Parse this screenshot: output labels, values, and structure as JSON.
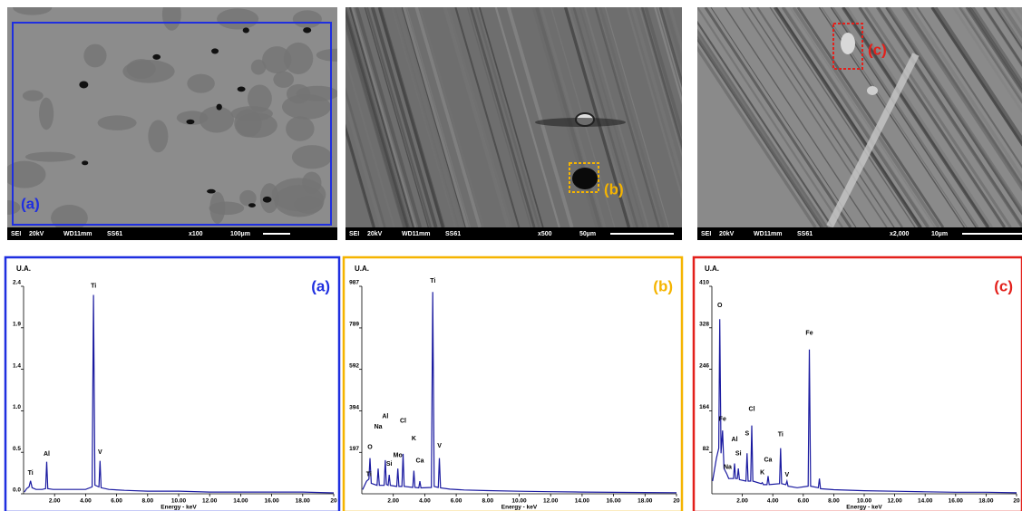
{
  "images": [
    {
      "label": "(a)",
      "color": "#1f2fe0",
      "info": [
        "SEI",
        "20kV",
        "WD11mm",
        "SS61",
        "x100",
        "100µm"
      ]
    },
    {
      "label": "(b)",
      "color": "#f5b400",
      "info": [
        "SEI",
        "20kV",
        "WD11mm",
        "SS61",
        "x500",
        "50µm"
      ]
    },
    {
      "label": "(c)",
      "color": "#e3201b",
      "info": [
        "SEI",
        "20kV",
        "WD11mm",
        "SS61",
        "x2,000",
        "10µm"
      ]
    }
  ],
  "chart_data": [
    {
      "type": "line",
      "panel_label": "(a)",
      "border_color": "#1f2fe0",
      "color": "#1a1aa0",
      "ylabel": "U.A.",
      "xlabel": "Energy - keV",
      "x": [
        0.05,
        0.2,
        0.35,
        0.45,
        0.55,
        0.8,
        1.2,
        1.42,
        1.49,
        1.56,
        1.9,
        2.5,
        3.2,
        4.0,
        4.42,
        4.51,
        4.6,
        4.86,
        4.93,
        5.0,
        5.5,
        6.5,
        8,
        10,
        12,
        14,
        16,
        18,
        20
      ],
      "values": [
        0.02,
        0.06,
        0.08,
        0.15,
        0.07,
        0.05,
        0.05,
        0.06,
        0.37,
        0.06,
        0.05,
        0.05,
        0.05,
        0.05,
        0.08,
        2.3,
        0.1,
        0.08,
        0.38,
        0.07,
        0.05,
        0.04,
        0.03,
        0.03,
        0.02,
        0.02,
        0.02,
        0.02,
        0.01
      ],
      "xlim": [
        0,
        20
      ],
      "xticks": [
        {
          "value": 2,
          "label": "2.00"
        },
        {
          "value": 4,
          "label": "4.00"
        },
        {
          "value": 6,
          "label": "6.00"
        },
        {
          "value": 8,
          "label": "8.00"
        },
        {
          "value": 10,
          "label": "10.00"
        },
        {
          "value": 12,
          "label": "12.00"
        },
        {
          "value": 14,
          "label": "14.00"
        },
        {
          "value": 16,
          "label": "16.00"
        },
        {
          "value": 18,
          "label": "18.00"
        },
        20
      ],
      "ylim": [
        0,
        2.4
      ],
      "yticks": [
        {
          "value": 0,
          "label": "0.0"
        },
        {
          "value": 0.48,
          "label": "0.5"
        },
        {
          "value": 0.96,
          "label": "1.0"
        },
        {
          "value": 1.44,
          "label": "1.4"
        },
        {
          "value": 1.92,
          "label": "1.9"
        },
        2.4
      ],
      "peak_labels": [
        {
          "text": "Ti",
          "x": 0.45,
          "y": 0.2
        },
        {
          "text": "Al",
          "x": 1.49,
          "y": 0.42
        },
        {
          "text": "Ti",
          "x": 4.51,
          "y": 2.36
        },
        {
          "text": "V",
          "x": 4.93,
          "y": 0.44
        }
      ]
    },
    {
      "type": "line",
      "panel_label": "(b)",
      "border_color": "#f5b400",
      "color": "#1a1aa0",
      "ylabel": "U.A.",
      "xlabel": "Energy - keV",
      "x": [
        0.05,
        0.3,
        0.45,
        0.52,
        0.6,
        0.97,
        1.04,
        1.11,
        1.42,
        1.49,
        1.56,
        1.67,
        1.74,
        1.81,
        2.22,
        2.29,
        2.36,
        2.55,
        2.62,
        2.69,
        3.24,
        3.31,
        3.38,
        3.62,
        3.69,
        3.76,
        4.42,
        4.51,
        4.6,
        4.86,
        4.93,
        5.0,
        5.6,
        6.5,
        8,
        10,
        12,
        14,
        16,
        18,
        20
      ],
      "values": [
        20,
        60,
        70,
        170,
        50,
        40,
        120,
        40,
        40,
        160,
        45,
        40,
        90,
        40,
        35,
        120,
        35,
        35,
        190,
        35,
        30,
        110,
        30,
        28,
        60,
        28,
        30,
        960,
        35,
        30,
        170,
        28,
        22,
        18,
        15,
        12,
        10,
        8,
        7,
        6,
        5
      ],
      "xlim": [
        0,
        20
      ],
      "xticks": [
        {
          "value": 2,
          "label": "2.00"
        },
        {
          "value": 4,
          "label": "4.00"
        },
        {
          "value": 6,
          "label": "6.00"
        },
        {
          "value": 8,
          "label": "8.00"
        },
        {
          "value": 10,
          "label": "10.00"
        },
        {
          "value": 12,
          "label": "12.00"
        },
        {
          "value": 14,
          "label": "14.00"
        },
        {
          "value": 16,
          "label": "16.00"
        },
        {
          "value": 18,
          "label": "18.00"
        },
        20
      ],
      "ylim": [
        0,
        987
      ],
      "yticks": [
        197,
        394,
        592,
        789,
        987
      ],
      "peak_labels": [
        {
          "text": "Ti",
          "x": 0.45,
          "y": 75
        },
        {
          "text": "O",
          "x": 0.52,
          "y": 205
        },
        {
          "text": "Na",
          "x": 1.04,
          "y": 300
        },
        {
          "text": "Al",
          "x": 1.49,
          "y": 350
        },
        {
          "text": "Si",
          "x": 1.74,
          "y": 125
        },
        {
          "text": "Mo",
          "x": 2.29,
          "y": 165
        },
        {
          "text": "Cl",
          "x": 2.62,
          "y": 330
        },
        {
          "text": "K",
          "x": 3.31,
          "y": 245
        },
        {
          "text": "Ca",
          "x": 3.69,
          "y": 140
        },
        {
          "text": "Ti",
          "x": 4.51,
          "y": 995
        },
        {
          "text": "V",
          "x": 4.93,
          "y": 210
        }
      ]
    },
    {
      "type": "line",
      "panel_label": "(c)",
      "border_color": "#e3201b",
      "color": "#1a1aa0",
      "ylabel": "U.A.",
      "xlabel": "Energy - keV",
      "x": [
        0.05,
        0.3,
        0.45,
        0.52,
        0.6,
        0.7,
        0.8,
        0.97,
        1.04,
        1.11,
        1.42,
        1.49,
        1.56,
        1.67,
        1.74,
        1.81,
        2.24,
        2.31,
        2.38,
        2.55,
        2.62,
        2.69,
        3.24,
        3.31,
        3.38,
        3.62,
        3.69,
        3.76,
        4.44,
        4.51,
        4.58,
        4.86,
        4.93,
        5.0,
        5.6,
        6.32,
        6.4,
        6.48,
        6.99,
        7.06,
        7.13,
        8,
        10,
        12,
        14,
        16,
        18,
        20
      ],
      "values": [
        25,
        70,
        90,
        345,
        80,
        125,
        50,
        40,
        35,
        30,
        30,
        60,
        30,
        30,
        50,
        28,
        25,
        80,
        25,
        25,
        135,
        25,
        20,
        22,
        18,
        18,
        35,
        18,
        20,
        90,
        20,
        18,
        25,
        15,
        12,
        15,
        285,
        15,
        12,
        30,
        10,
        8,
        6,
        5,
        4,
        3,
        3,
        2
      ],
      "xlim": [
        0,
        20
      ],
      "xticks": [
        {
          "value": 2,
          "label": "2.00"
        },
        {
          "value": 4,
          "label": "4.00"
        },
        {
          "value": 6,
          "label": "6.00"
        },
        {
          "value": 8,
          "label": "8.00"
        },
        {
          "value": 10,
          "label": "10.00"
        },
        {
          "value": 12,
          "label": "12.00"
        },
        {
          "value": 14,
          "label": "14.00"
        },
        {
          "value": 16,
          "label": "16.00"
        },
        {
          "value": 18,
          "label": "18.00"
        },
        20
      ],
      "ylim": [
        0,
        410
      ],
      "yticks": [
        82,
        164,
        246,
        328,
        410
      ],
      "peak_labels": [
        {
          "text": "O",
          "x": 0.52,
          "y": 365
        },
        {
          "text": "Fe",
          "x": 0.7,
          "y": 140
        },
        {
          "text": "Na",
          "x": 1.04,
          "y": 45
        },
        {
          "text": "Al",
          "x": 1.49,
          "y": 100
        },
        {
          "text": "Si",
          "x": 1.74,
          "y": 72
        },
        {
          "text": "S",
          "x": 2.31,
          "y": 112
        },
        {
          "text": "Cl",
          "x": 2.62,
          "y": 160
        },
        {
          "text": "K",
          "x": 3.31,
          "y": 35
        },
        {
          "text": "Ca",
          "x": 3.69,
          "y": 60
        },
        {
          "text": "Ti",
          "x": 4.51,
          "y": 110
        },
        {
          "text": "V",
          "x": 4.93,
          "y": 30
        },
        {
          "text": "Fe",
          "x": 6.4,
          "y": 310
        }
      ]
    }
  ]
}
